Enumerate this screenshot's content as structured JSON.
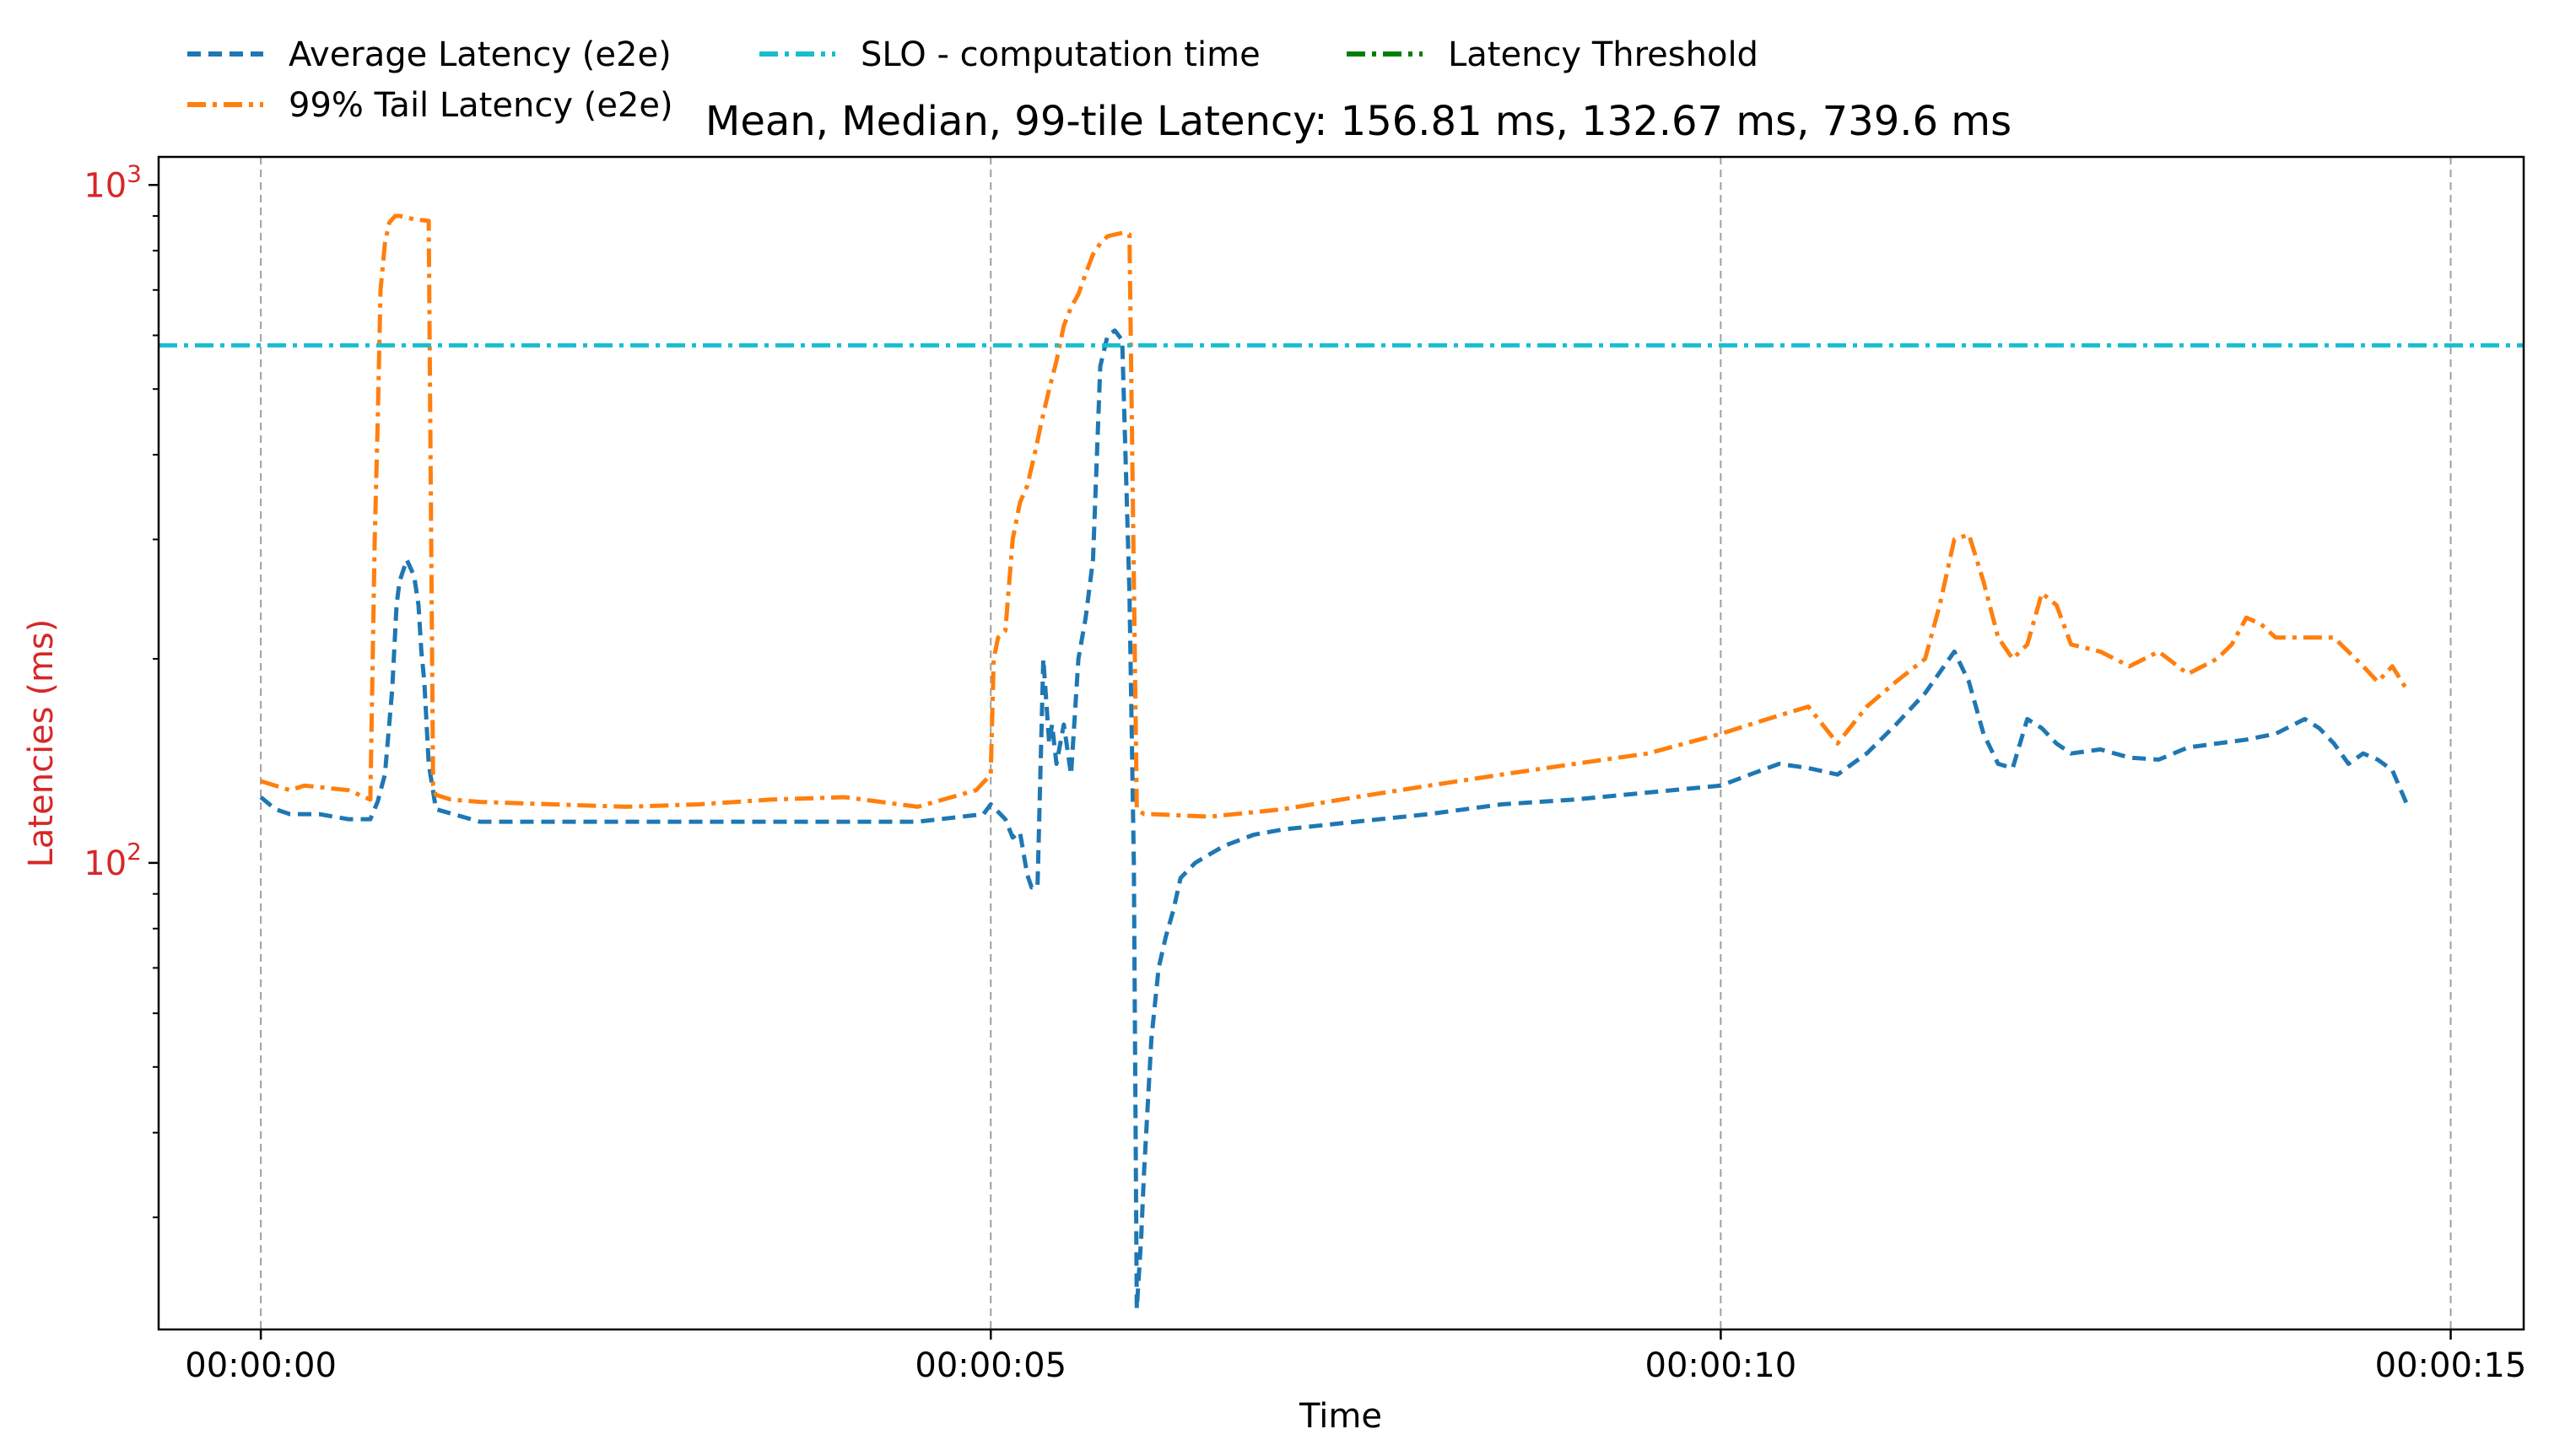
{
  "chart_data": {
    "type": "line",
    "title": "Mean, Median, 99-tile Latency: 156.81 ms, 132.67 ms, 739.6 ms",
    "xlabel": "Time",
    "ylabel": "Latencies (ms)",
    "yscale": "log",
    "xlim": [
      -0.7,
      15.5
    ],
    "ylim": [
      20.5,
      1100
    ],
    "grid": "x-only, dashed gray",
    "legend_placement": "top-left, above plot",
    "colors": {
      "avg": "#1f77b4",
      "tail": "#ff7f0e",
      "slo": "#17becf",
      "threshold": "#008000",
      "ylabel": "#d62728"
    },
    "x_ticks": [
      {
        "value": 0,
        "label": "00:00:00"
      },
      {
        "value": 5,
        "label": "00:00:05"
      },
      {
        "value": 10,
        "label": "00:00:10"
      },
      {
        "value": 15,
        "label": "00:00:15"
      }
    ],
    "y_ticks": [
      {
        "value": 100,
        "base": "10",
        "exp": "2"
      },
      {
        "value": 1000,
        "base": "10",
        "exp": "3"
      }
    ],
    "y_minor_ticks": [
      30,
      40,
      50,
      60,
      70,
      80,
      90,
      200,
      300,
      400,
      500,
      600,
      700,
      800,
      900
    ],
    "legend": [
      {
        "label": "Average Latency (e2e)",
        "series": "avg"
      },
      {
        "label": "SLO - computation time",
        "series": "slo"
      },
      {
        "label": "Latency Threshold",
        "series": "threshold"
      },
      {
        "label": "99% Tail Latency (e2e)",
        "series": "tail"
      }
    ],
    "series": [
      {
        "name": "Average Latency (e2e)",
        "key": "avg",
        "style": "dashed",
        "x": [
          0,
          0.1,
          0.2,
          0.4,
          0.6,
          0.75,
          0.8,
          0.85,
          0.9,
          0.93,
          0.95,
          1.0,
          1.05,
          1.08,
          1.1,
          1.12,
          1.15,
          1.2,
          1.5,
          2.0,
          3.0,
          4.0,
          4.5,
          4.95,
          5.0,
          5.1,
          5.15,
          5.2,
          5.25,
          5.28,
          5.32,
          5.36,
          5.4,
          5.42,
          5.45,
          5.5,
          5.55,
          5.6,
          5.65,
          5.7,
          5.75,
          5.8,
          5.85,
          5.9,
          5.95,
          5.98,
          6.0,
          6.03,
          6.05,
          6.1,
          6.15,
          6.2,
          6.25,
          6.3,
          6.4,
          6.5,
          6.6,
          6.8,
          7.0,
          7.5,
          8.0,
          8.5,
          9.0,
          9.5,
          10.0,
          10.2,
          10.4,
          10.6,
          10.8,
          11.0,
          11.2,
          11.4,
          11.6,
          11.7,
          11.8,
          11.9,
          12.0,
          12.1,
          12.2,
          12.3,
          12.4,
          12.6,
          12.8,
          13.0,
          13.2,
          13.4,
          13.6,
          13.8,
          14.0,
          14.1,
          14.2,
          14.3,
          14.4,
          14.5,
          14.6,
          14.7
        ],
        "values": [
          125,
          120,
          118,
          118,
          116,
          116,
          123,
          135,
          180,
          240,
          260,
          280,
          265,
          240,
          205,
          185,
          140,
          120,
          115,
          115,
          115,
          115,
          115,
          118,
          122,
          116,
          109,
          111,
          96,
          92,
          92,
          200,
          150,
          160,
          140,
          160,
          135,
          200,
          230,
          280,
          540,
          600,
          610,
          590,
          250,
          100,
          22,
          28,
          35,
          55,
          70,
          78,
          85,
          95,
          100,
          103,
          106,
          110,
          112,
          115,
          118,
          122,
          124,
          127,
          130,
          135,
          140,
          138,
          135,
          145,
          160,
          178,
          205,
          185,
          155,
          140,
          138,
          163,
          158,
          150,
          145,
          147,
          143,
          142,
          148,
          150,
          152,
          155,
          163,
          158,
          150,
          140,
          145,
          142,
          137,
          122
        ]
      },
      {
        "name": "99% Tail Latency (e2e)",
        "key": "tail",
        "style": "dashdot",
        "x": [
          0,
          0.2,
          0.3,
          0.6,
          0.75,
          0.78,
          0.8,
          0.82,
          0.85,
          0.88,
          0.92,
          0.95,
          1.05,
          1.15,
          1.18,
          1.2,
          1.3,
          1.5,
          2.0,
          2.5,
          3.0,
          3.5,
          4.0,
          4.5,
          4.9,
          5.0,
          5.02,
          5.05,
          5.1,
          5.15,
          5.2,
          5.25,
          5.3,
          5.35,
          5.4,
          5.45,
          5.5,
          5.55,
          5.6,
          5.65,
          5.7,
          5.75,
          5.8,
          5.85,
          5.9,
          5.95,
          6.0,
          6.05,
          6.1,
          6.5,
          7.0,
          7.5,
          8.0,
          8.5,
          9.0,
          9.5,
          10.0,
          10.2,
          10.4,
          10.6,
          10.8,
          11.0,
          11.2,
          11.4,
          11.5,
          11.6,
          11.7,
          11.8,
          11.9,
          12.0,
          12.1,
          12.2,
          12.3,
          12.4,
          12.6,
          12.8,
          13.0,
          13.2,
          13.4,
          13.5,
          13.6,
          13.7,
          13.8,
          14.0,
          14.2,
          14.4,
          14.5,
          14.6,
          14.7
        ],
        "values": [
          132,
          128,
          130,
          128,
          124,
          300,
          440,
          700,
          820,
          880,
          900,
          900,
          890,
          885,
          130,
          126,
          124,
          123,
          122,
          121,
          122,
          124,
          125,
          121,
          128,
          135,
          200,
          215,
          220,
          300,
          340,
          360,
          400,
          450,
          500,
          550,
          620,
          660,
          690,
          740,
          790,
          820,
          840,
          845,
          850,
          845,
          120,
          118,
          118,
          117,
          120,
          125,
          130,
          135,
          140,
          145,
          155,
          160,
          165,
          170,
          150,
          170,
          185,
          200,
          240,
          300,
          305,
          260,
          215,
          200,
          210,
          250,
          240,
          210,
          205,
          195,
          205,
          190,
          200,
          210,
          230,
          225,
          215,
          215,
          215,
          195,
          185,
          195,
          180
        ]
      },
      {
        "name": "SLO - computation time",
        "key": "slo",
        "style": "dashdot",
        "x": [
          -0.7,
          15.5
        ],
        "values": [
          580,
          580
        ]
      }
    ]
  }
}
